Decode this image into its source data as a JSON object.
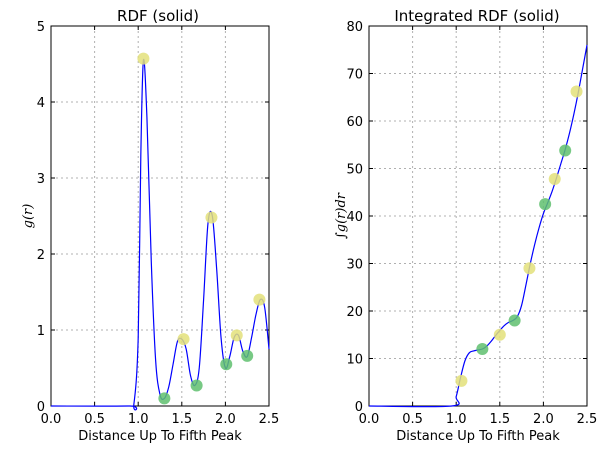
{
  "chart_data": [
    {
      "type": "line",
      "title": "RDF (solid)",
      "xlabel": "Distance Up To Fifth Peak",
      "ylabel": "g(r)",
      "xlim": [
        0.0,
        2.5
      ],
      "ylim": [
        0,
        5
      ],
      "xticks": [
        "0.0",
        "0.5",
        "1.0",
        "1.5",
        "2.0",
        "2.5"
      ],
      "yticks": [
        "0",
        "1",
        "2",
        "3",
        "4",
        "5"
      ],
      "grid": true,
      "line_color": "#0000ff",
      "series": [
        {
          "x": [
            0.0,
            0.9,
            0.95,
            1.0,
            1.03,
            1.06,
            1.1,
            1.15,
            1.2,
            1.25,
            1.3,
            1.35,
            1.4,
            1.45,
            1.5,
            1.55,
            1.6,
            1.65,
            1.7,
            1.75,
            1.8,
            1.85,
            1.9,
            1.95,
            2.0,
            2.05,
            2.1,
            2.15,
            2.2,
            2.25,
            2.3,
            2.35,
            2.4,
            2.45,
            2.5
          ],
          "y": [
            0.0,
            0.0,
            0.02,
            0.9,
            3.3,
            4.55,
            3.8,
            1.9,
            0.6,
            0.15,
            0.1,
            0.25,
            0.55,
            0.85,
            0.88,
            0.75,
            0.4,
            0.27,
            0.5,
            1.4,
            2.4,
            2.5,
            1.8,
            0.9,
            0.5,
            0.65,
            0.9,
            0.93,
            0.72,
            0.65,
            0.9,
            1.2,
            1.4,
            1.3,
            0.75
          ]
        }
      ],
      "markers": [
        {
          "x": 1.06,
          "y": 4.57,
          "color": "#e3e07a"
        },
        {
          "x": 1.3,
          "y": 0.1,
          "color": "#5fbf6f"
        },
        {
          "x": 1.52,
          "y": 0.88,
          "color": "#e3e07a"
        },
        {
          "x": 1.67,
          "y": 0.27,
          "color": "#5fbf6f"
        },
        {
          "x": 1.84,
          "y": 2.48,
          "color": "#e3e07a"
        },
        {
          "x": 2.01,
          "y": 0.55,
          "color": "#5fbf6f"
        },
        {
          "x": 2.13,
          "y": 0.93,
          "color": "#e3e07a"
        },
        {
          "x": 2.25,
          "y": 0.66,
          "color": "#5fbf6f"
        },
        {
          "x": 2.39,
          "y": 1.4,
          "color": "#e3e07a"
        }
      ]
    },
    {
      "type": "line",
      "title": "Integrated RDF (solid)",
      "xlabel": "Distance Up To Fifth Peak",
      "ylabel": "∫g(r)dr",
      "xlim": [
        0.0,
        2.5
      ],
      "ylim": [
        0,
        80
      ],
      "xticks": [
        "0.0",
        "0.5",
        "1.0",
        "1.5",
        "2.0",
        "2.5"
      ],
      "yticks": [
        "0",
        "10",
        "20",
        "30",
        "40",
        "50",
        "60",
        "70",
        "80"
      ],
      "grid": true,
      "line_color": "#0000ff",
      "series": [
        {
          "x": [
            0.0,
            0.95,
            1.0,
            1.05,
            1.1,
            1.15,
            1.2,
            1.25,
            1.3,
            1.35,
            1.4,
            1.45,
            1.5,
            1.55,
            1.6,
            1.65,
            1.7,
            1.75,
            1.8,
            1.85,
            1.9,
            1.95,
            2.0,
            2.05,
            2.1,
            2.15,
            2.2,
            2.25,
            2.3,
            2.35,
            2.4,
            2.45,
            2.5
          ],
          "y": [
            0.0,
            0.0,
            2.0,
            6.0,
            9.5,
            11.2,
            11.6,
            11.8,
            12.0,
            12.6,
            13.6,
            14.8,
            15.9,
            16.9,
            17.6,
            18.0,
            18.8,
            21.2,
            25.5,
            30.0,
            34.0,
            37.5,
            40.5,
            42.8,
            45.2,
            48.0,
            51.0,
            54.0,
            57.5,
            61.5,
            66.0,
            71.0,
            76.0
          ]
        }
      ],
      "markers": [
        {
          "x": 1.06,
          "y": 5.3,
          "color": "#e3e07a"
        },
        {
          "x": 1.3,
          "y": 12.0,
          "color": "#5fbf6f"
        },
        {
          "x": 1.5,
          "y": 15.0,
          "color": "#e3e07a"
        },
        {
          "x": 1.67,
          "y": 18.0,
          "color": "#5fbf6f"
        },
        {
          "x": 1.84,
          "y": 29.0,
          "color": "#e3e07a"
        },
        {
          "x": 2.02,
          "y": 42.5,
          "color": "#5fbf6f"
        },
        {
          "x": 2.13,
          "y": 47.8,
          "color": "#e3e07a"
        },
        {
          "x": 2.25,
          "y": 53.8,
          "color": "#5fbf6f"
        },
        {
          "x": 2.38,
          "y": 66.2,
          "color": "#e3e07a"
        }
      ]
    }
  ]
}
